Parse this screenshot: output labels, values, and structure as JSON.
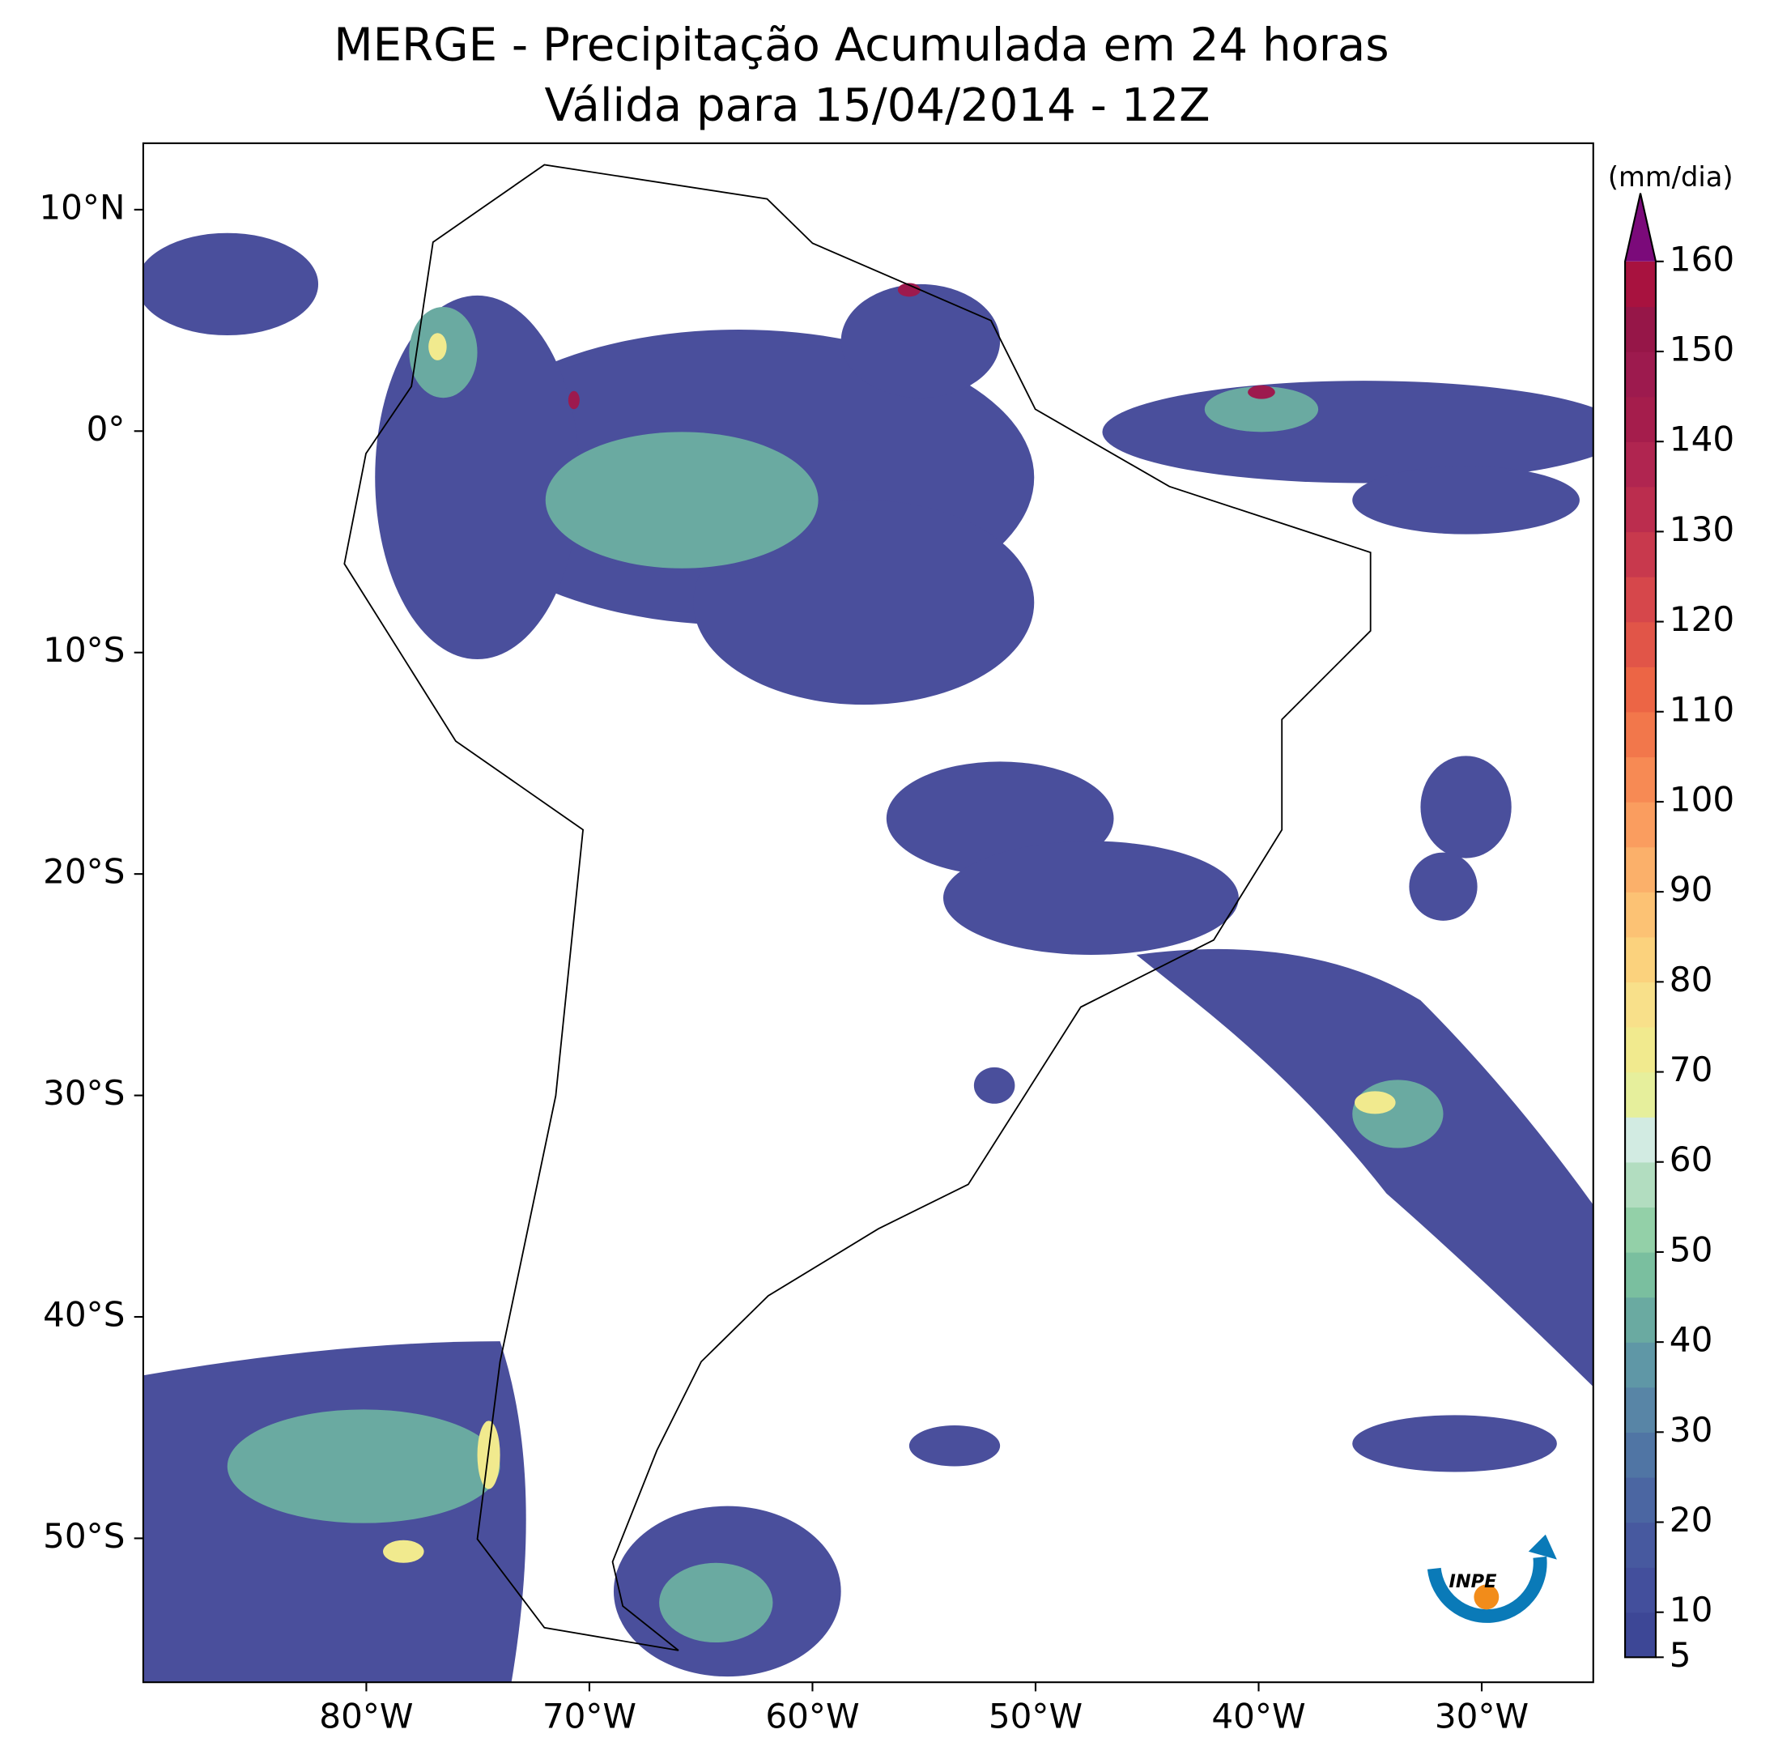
{
  "title": [
    "MERGE - Precipitação Acumulada em 24 horas",
    "Válida para 15/04/2014 - 12Z"
  ],
  "map": {
    "xlim": [
      -90,
      -25
    ],
    "ylim": [
      -56.5,
      13
    ],
    "xticks": [
      {
        "value": -80,
        "label": "80°W"
      },
      {
        "value": -70,
        "label": "70°W"
      },
      {
        "value": -60,
        "label": "60°W"
      },
      {
        "value": -50,
        "label": "50°W"
      },
      {
        "value": -40,
        "label": "40°W"
      },
      {
        "value": -30,
        "label": "30°W"
      }
    ],
    "yticks": [
      {
        "value": 10,
        "label": "10°N"
      },
      {
        "value": 0,
        "label": "0°"
      },
      {
        "value": -10,
        "label": "10°S"
      },
      {
        "value": -20,
        "label": "20°S"
      },
      {
        "value": -30,
        "label": "30°S"
      },
      {
        "value": -40,
        "label": "40°S"
      },
      {
        "value": -50,
        "label": "50°S"
      }
    ]
  },
  "colorbar": {
    "label": "(mm/dia)",
    "clim": [
      5,
      160
    ],
    "ticks": [
      5,
      10,
      20,
      30,
      40,
      50,
      60,
      70,
      80,
      90,
      100,
      110,
      120,
      130,
      140,
      150,
      160
    ],
    "colors": [
      "#3d4796",
      "#434f9c",
      "#47599f",
      "#4b66a2",
      "#5075a4",
      "#5885a6",
      "#5f97a6",
      "#6aaaa1",
      "#7abf9f",
      "#93d0a8",
      "#b2ddc0",
      "#d2ebe2",
      "#e6ef9c",
      "#f1ea8e",
      "#f8e08a",
      "#fbd27d",
      "#fcc274",
      "#fbb06a",
      "#fa9d5f",
      "#f78a54",
      "#f2774b",
      "#ec6545",
      "#e15548",
      "#d6474b",
      "#c8394d",
      "#bb2d4e",
      "#b02550",
      "#a51d4c",
      "#9d1a4e",
      "#961648",
      "#a8123f"
    ],
    "extend_color": "#7b0a7a"
  },
  "logo": "INPE"
}
